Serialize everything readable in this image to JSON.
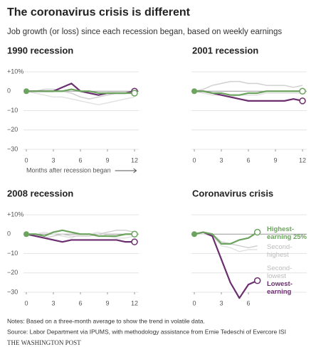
{
  "title": "The coronavirus crisis is different",
  "subtitle": "Job growth (or loss) since each recession began, based on weekly earnings",
  "notes": "Notes: Based on a three-month average to show the trend in volatile data.",
  "source": "Source: Labor Department via IPUMS, with methodology assistance from Ernie Tedeschi of Evercore ISI",
  "credit": "THE WASHINGTON POST",
  "chart_data": [
    {
      "type": "line",
      "title": "1990 recession",
      "xlabel": "Months after recession began",
      "x": [
        0,
        1,
        2,
        3,
        4,
        5,
        6,
        7,
        8,
        9,
        10,
        11,
        12
      ],
      "xlim": [
        0,
        12
      ],
      "xticks": [
        0,
        3,
        6,
        9,
        12
      ],
      "ylim": [
        -30,
        10
      ],
      "yticks": [
        {
          "value": 10,
          "label": "+10%"
        },
        0,
        {
          "value": -10,
          "label": "−10"
        },
        {
          "value": -20,
          "label": "−20"
        },
        {
          "value": -30,
          "label": "−30"
        }
      ],
      "ytick_labels": true,
      "series": [
        {
          "color": "#e2e2e2",
          "values": [
            0,
            -1,
            -2,
            -3,
            -3,
            -4,
            -5,
            -6,
            -7,
            -6,
            -5,
            -4,
            -3
          ]
        },
        {
          "color": "#d0d0d0",
          "values": [
            0,
            0,
            1,
            1,
            0,
            -1,
            -3,
            -4,
            -3,
            -2,
            -1,
            -1,
            0
          ]
        },
        {
          "color": "#6b2e6f",
          "values": [
            0,
            0,
            0,
            0,
            2,
            4,
            0,
            -1,
            -2,
            -1,
            -1,
            -1,
            0
          ]
        },
        {
          "color": "#6ca35e",
          "values": [
            0,
            0,
            0,
            0,
            0,
            1,
            0,
            0,
            -1,
            -1,
            -1,
            -1,
            -1
          ]
        }
      ]
    },
    {
      "type": "line",
      "title": "2001 recession",
      "x": [
        0,
        1,
        2,
        3,
        4,
        5,
        6,
        7,
        8,
        9,
        10,
        11,
        12
      ],
      "xlim": [
        0,
        12
      ],
      "xticks": [
        0,
        3,
        6,
        9,
        12
      ],
      "ylim": [
        -30,
        10
      ],
      "yticks": [
        10,
        0,
        -10,
        -20,
        -30
      ],
      "ytick_labels": false,
      "series": [
        {
          "color": "#e2e2e2",
          "values": [
            0,
            -1,
            -2,
            -2,
            -3,
            -2,
            -2,
            -2,
            -1,
            -1,
            -1,
            -1,
            -1
          ]
        },
        {
          "color": "#d0d0d0",
          "values": [
            0,
            1,
            3,
            4,
            5,
            5,
            4,
            4,
            3,
            3,
            3,
            2,
            3
          ]
        },
        {
          "color": "#6b2e6f",
          "values": [
            0,
            0,
            -1,
            -2,
            -3,
            -4,
            -5,
            -5,
            -5,
            -5,
            -5,
            -4,
            -5
          ]
        },
        {
          "color": "#6ca35e",
          "values": [
            0,
            0,
            -1,
            -1,
            -2,
            -2,
            -1,
            -1,
            0,
            0,
            0,
            0,
            0
          ]
        }
      ]
    },
    {
      "type": "line",
      "title": "2008 recession",
      "x": [
        0,
        1,
        2,
        3,
        4,
        5,
        6,
        7,
        8,
        9,
        10,
        11,
        12
      ],
      "xlim": [
        0,
        12
      ],
      "xticks": [
        0,
        3,
        6,
        9,
        12
      ],
      "ylim": [
        -30,
        10
      ],
      "yticks": [
        {
          "value": 10,
          "label": "+10%"
        },
        0,
        {
          "value": -10,
          "label": "−10"
        },
        {
          "value": -20,
          "label": "−20"
        },
        {
          "value": -30,
          "label": "−30"
        }
      ],
      "ytick_labels": true,
      "series": [
        {
          "color": "#e2e2e2",
          "values": [
            0,
            0,
            1,
            0,
            -1,
            -2,
            0,
            0,
            1,
            -1,
            -2,
            -2,
            -1
          ]
        },
        {
          "color": "#d0d0d0",
          "values": [
            0,
            -1,
            -2,
            -1,
            0,
            -1,
            -1,
            -1,
            0,
            1,
            2,
            2,
            1
          ]
        },
        {
          "color": "#6b2e6f",
          "values": [
            0,
            -1,
            -2,
            -3,
            -4,
            -3,
            -3,
            -3,
            -3,
            -3,
            -3,
            -4,
            -4
          ]
        },
        {
          "color": "#6ca35e",
          "values": [
            0,
            0,
            -1,
            1,
            2,
            1,
            0,
            0,
            -1,
            -1,
            -1,
            0,
            0
          ]
        }
      ]
    },
    {
      "type": "line",
      "title": "Coronavirus crisis",
      "x": [
        0,
        1,
        2,
        3,
        4,
        5,
        6,
        7
      ],
      "xlim": [
        0,
        12
      ],
      "xticks": [
        0,
        3,
        6
      ],
      "ylim": [
        -30,
        10
      ],
      "yticks": [
        10,
        0,
        -10,
        -20,
        -30
      ],
      "ytick_labels": false,
      "series": [
        {
          "name": "Second-lowest",
          "color": "#e2e2e2",
          "values": [
            0,
            0,
            -1,
            -6,
            -7,
            -9,
            -8,
            -8
          ]
        },
        {
          "name": "Second-highest",
          "color": "#d0d0d0",
          "values": [
            0,
            1,
            0,
            -4,
            -5,
            -6,
            -7,
            -6
          ]
        },
        {
          "name": "Lowest-earning",
          "color": "#6b2e6f",
          "values": [
            0,
            1,
            -1,
            -13,
            -25,
            -33,
            -26,
            -24
          ]
        },
        {
          "name": "Highest-earning 25%",
          "color": "#6ca35e",
          "values": [
            0,
            1,
            0,
            -5,
            -5,
            -3,
            -2,
            1
          ]
        }
      ]
    }
  ]
}
